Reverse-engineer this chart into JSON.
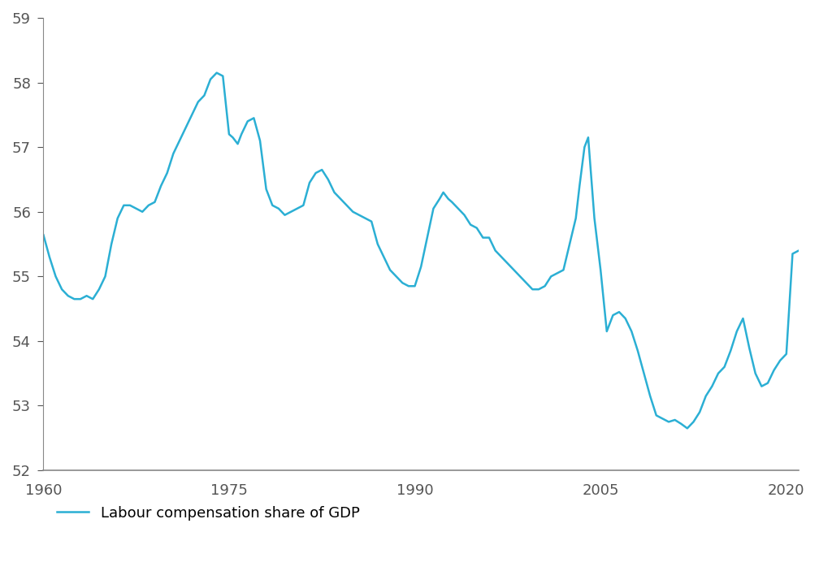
{
  "line_color": "#2BAFD4",
  "line_width": 1.8,
  "background_color": "#ffffff",
  "ylim": [
    52,
    59
  ],
  "xlim": [
    1960,
    2021
  ],
  "yticks": [
    52,
    53,
    54,
    55,
    56,
    57,
    58,
    59
  ],
  "xticks": [
    1960,
    1975,
    1990,
    2005,
    2020
  ],
  "legend_label": "Labour compensation share of GDP",
  "x": [
    1960.0,
    1960.5,
    1961.0,
    1961.5,
    1962.0,
    1962.5,
    1963.0,
    1963.5,
    1964.0,
    1964.5,
    1965.0,
    1965.5,
    1966.0,
    1966.5,
    1967.0,
    1967.5,
    1968.0,
    1968.5,
    1969.0,
    1969.5,
    1970.0,
    1970.5,
    1971.0,
    1971.5,
    1972.0,
    1972.5,
    1973.0,
    1973.5,
    1974.0,
    1974.5,
    1975.0,
    1975.3,
    1975.7,
    1976.0,
    1976.5,
    1977.0,
    1977.5,
    1978.0,
    1978.5,
    1979.0,
    1979.5,
    1980.0,
    1980.5,
    1981.0,
    1981.5,
    1982.0,
    1982.5,
    1983.0,
    1983.5,
    1984.0,
    1984.5,
    1985.0,
    1985.5,
    1986.0,
    1986.5,
    1987.0,
    1987.5,
    1988.0,
    1988.5,
    1989.0,
    1989.5,
    1990.0,
    1990.5,
    1991.0,
    1991.5,
    1992.0,
    1992.3,
    1992.7,
    1993.0,
    1993.5,
    1994.0,
    1994.5,
    1995.0,
    1995.5,
    1996.0,
    1996.5,
    1997.0,
    1997.5,
    1998.0,
    1998.5,
    1999.0,
    1999.5,
    2000.0,
    2000.5,
    2001.0,
    2001.5,
    2002.0,
    2002.5,
    2003.0,
    2003.3,
    2003.7,
    2004.0,
    2004.5,
    2005.0,
    2005.5,
    2006.0,
    2006.5,
    2007.0,
    2007.5,
    2008.0,
    2008.5,
    2009.0,
    2009.5,
    2010.0,
    2010.5,
    2011.0,
    2011.5,
    2012.0,
    2012.5,
    2013.0,
    2013.5,
    2014.0,
    2014.5,
    2015.0,
    2015.5,
    2016.0,
    2016.5,
    2017.0,
    2017.5,
    2018.0,
    2018.5,
    2019.0,
    2019.5,
    2020.0,
    2020.5,
    2021.0
  ],
  "y": [
    55.65,
    55.3,
    55.0,
    54.8,
    54.7,
    54.65,
    54.65,
    54.7,
    54.65,
    54.8,
    55.0,
    55.5,
    55.9,
    56.1,
    56.1,
    56.05,
    56.0,
    56.1,
    56.15,
    56.4,
    56.6,
    56.9,
    57.1,
    57.3,
    57.5,
    57.7,
    57.8,
    58.05,
    58.15,
    58.1,
    57.2,
    57.15,
    57.05,
    57.2,
    57.4,
    57.45,
    57.1,
    56.35,
    56.1,
    56.05,
    55.95,
    56.0,
    56.05,
    56.1,
    56.45,
    56.6,
    56.65,
    56.5,
    56.3,
    56.2,
    56.1,
    56.0,
    55.95,
    55.9,
    55.85,
    55.5,
    55.3,
    55.1,
    55.0,
    54.9,
    54.85,
    54.85,
    55.15,
    55.6,
    56.05,
    56.2,
    56.3,
    56.2,
    56.15,
    56.05,
    55.95,
    55.8,
    55.75,
    55.6,
    55.6,
    55.4,
    55.3,
    55.2,
    55.1,
    55.0,
    54.9,
    54.8,
    54.8,
    54.85,
    55.0,
    55.05,
    55.1,
    55.5,
    55.9,
    56.4,
    57.0,
    57.15,
    55.9,
    55.1,
    54.15,
    54.4,
    54.45,
    54.35,
    54.15,
    53.85,
    53.5,
    53.15,
    52.85,
    52.8,
    52.75,
    52.78,
    52.72,
    52.65,
    52.75,
    52.9,
    53.15,
    53.3,
    53.5,
    53.6,
    53.85,
    54.15,
    54.35,
    53.9,
    53.5,
    53.3,
    53.35,
    53.55,
    53.7,
    53.8,
    55.35,
    55.4
  ]
}
